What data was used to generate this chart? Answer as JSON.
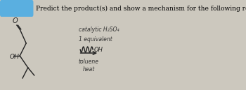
{
  "title_text": "Predict the product(s) and show a mechanism for the following reaction.",
  "title_fontsize": 6.5,
  "bg_color": "#ccc8be",
  "header_box_color": "#5aafe0",
  "conditions_line1": "catalytic H₂SO₄",
  "conditions_line2": "1 equivalent",
  "conditions_line3": "toluene",
  "conditions_line4": "heat",
  "mol_color": "#222222",
  "text_color": "#333333"
}
